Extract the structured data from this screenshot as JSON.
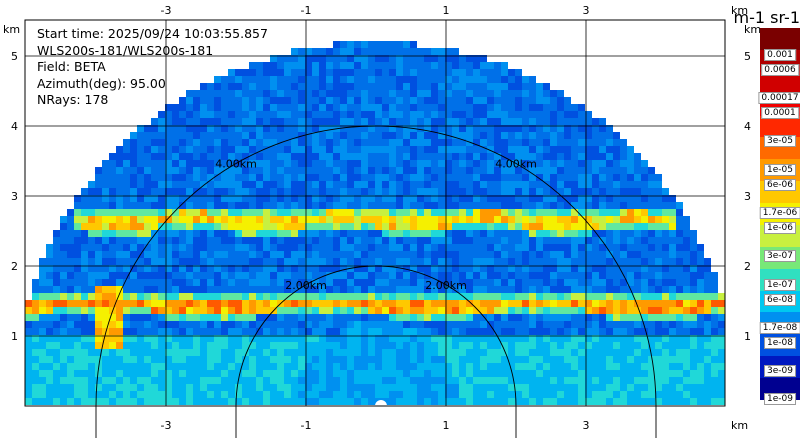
{
  "info": {
    "start_time": "Start time: 2025/09/24 10:03:55.857",
    "instrument": "WLS200s-181/WLS200s-181",
    "field": "Field: BETA",
    "azimuth": "Azimuth(deg): 95.00",
    "nrays": "NRays: 178"
  },
  "axes": {
    "x_unit": "km",
    "y_unit": "km",
    "x_ticks": [
      "-3",
      "-1",
      "1",
      "3"
    ],
    "y_ticks": [
      "1",
      "2",
      "3",
      "4",
      "5"
    ],
    "x_range_km": [
      -5,
      5
    ],
    "y_range_km": [
      0,
      6
    ],
    "grid": true
  },
  "range_rings": [
    {
      "label": "2.00km",
      "radius_km": 2
    },
    {
      "label": "4.00km",
      "radius_km": 4
    }
  ],
  "colorbar": {
    "title": "m-1 sr-1",
    "labels": [
      "0.001",
      "0.0006",
      "0.00017",
      "0.0001",
      "3e-05",
      "1e-05",
      "6e-06",
      "1.7e-06",
      "1e-06",
      "3e-07",
      "1e-07",
      "6e-08",
      "1.7e-08",
      "1e-08",
      "3e-09",
      "1e-09"
    ],
    "colors": [
      "#7a0000",
      "#b00000",
      "#d00000",
      "#f00000",
      "#ff2800",
      "#ff6a00",
      "#ff9a00",
      "#ffc800",
      "#f5f000",
      "#c8f040",
      "#78e878",
      "#30e0c0",
      "#00c8f0",
      "#0090f0",
      "#0050e0",
      "#0018c0",
      "#000090"
    ]
  },
  "chart_data": {
    "type": "heatmap",
    "title": "",
    "xlabel": "km",
    "ylabel": "km",
    "field": "BETA",
    "azimuth_deg": 95.0,
    "nrays": 178,
    "max_range_km": 5.2,
    "layers": [
      {
        "height_km": 1.45,
        "range_x_km": [
          -5,
          5
        ]
      },
      {
        "height_km": 2.65,
        "range_x_km": [
          -4.3,
          4.3
        ]
      }
    ]
  }
}
